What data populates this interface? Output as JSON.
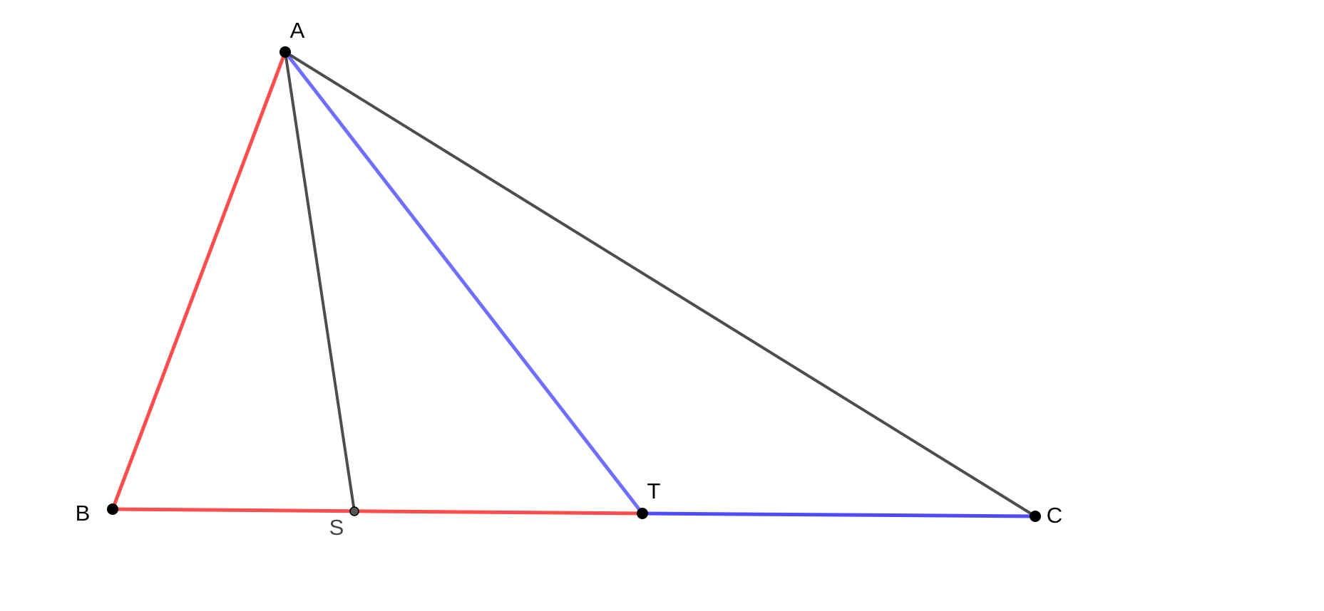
{
  "points": [
    {
      "label": "A"
    },
    {
      "label": "B"
    },
    {
      "label": "C"
    },
    {
      "label": "S"
    },
    {
      "label": "T"
    }
  ]
}
